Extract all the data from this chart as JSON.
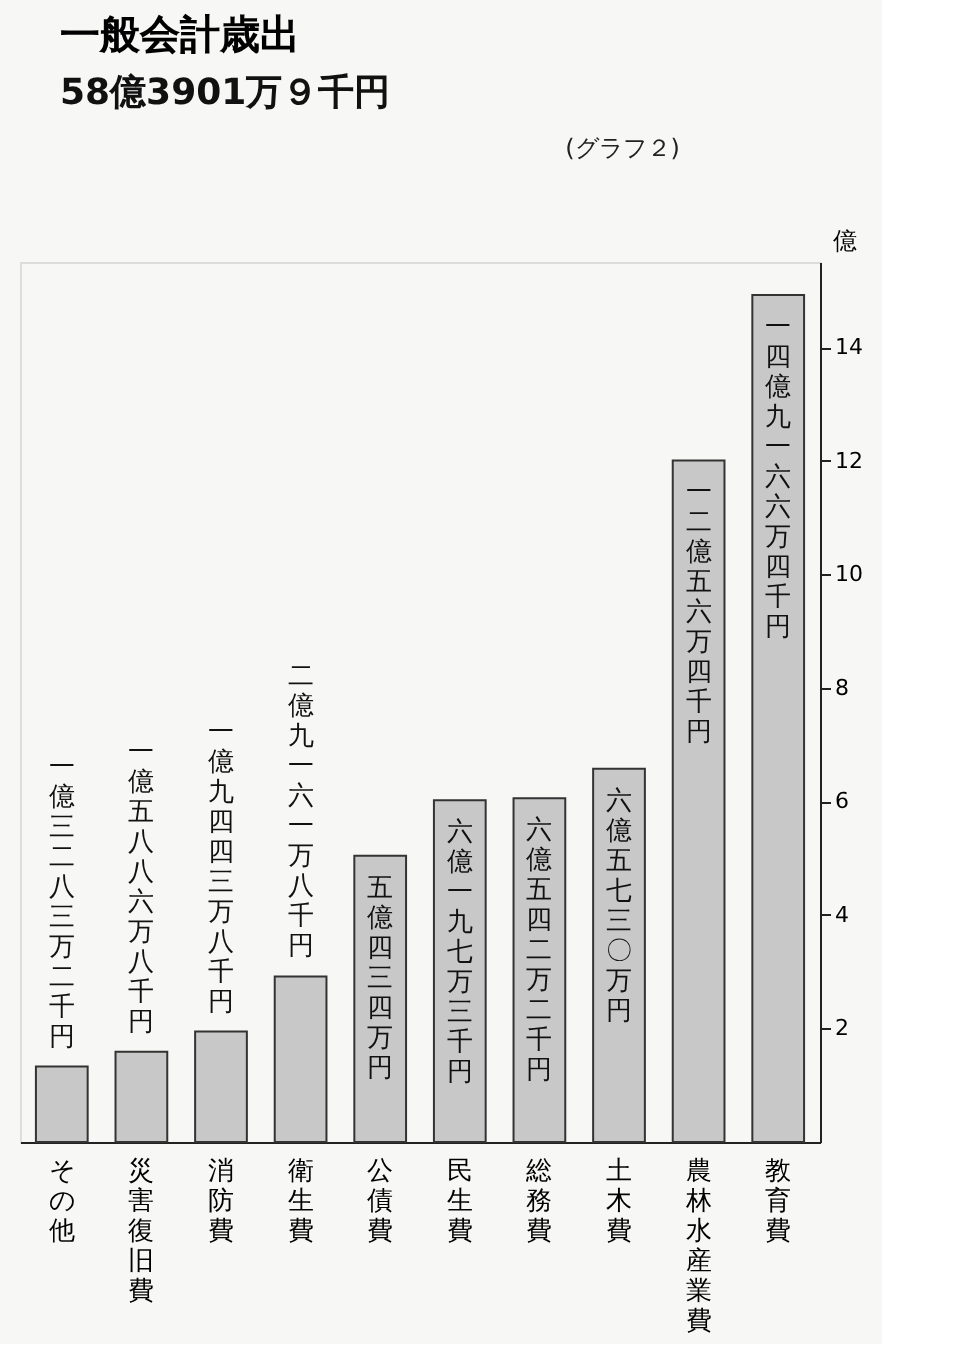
{
  "chart_data": {
    "type": "bar",
    "title": "一般会計歳出",
    "subtitle": "58億3901万９千円",
    "annotations": [
      "(グラフ２)"
    ],
    "ylabel": "億",
    "categories": [
      "その他",
      "災害復旧費",
      "消防費",
      "衛生費",
      "公債費",
      "民生費",
      "総務費",
      "土木費",
      "農林水産業費",
      "教育費"
    ],
    "values": [
      1.3283,
      1.5887,
      1.9444,
      2.9162,
      5.0434,
      6.0197,
      6.0542,
      6.573,
      12.0056,
      14.9166
    ],
    "value_labels": [
      "一億三二八三万二千円",
      "一億五八八六万八千円",
      "一億九四四三万八千円",
      "二億九一六一万八千円",
      "五億四三四万円",
      "六億一九七万三千円",
      "六億五四二万二千円",
      "六億五七三〇万円",
      "一二億五六万四千円",
      "一四億九一六六万四千円"
    ],
    "color": "#c8c8c8",
    "ylim": [
      0,
      15.5
    ],
    "yticks": [
      2,
      4,
      6,
      8,
      10,
      12,
      14
    ],
    "grid": false
  }
}
